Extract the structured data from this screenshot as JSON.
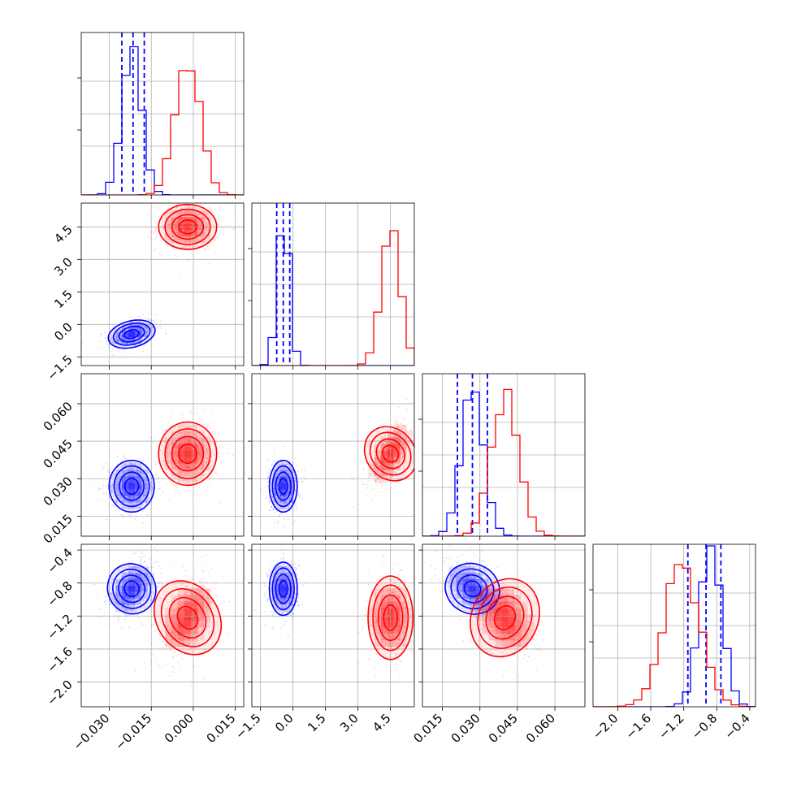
{
  "chart_data": {
    "type": "corner",
    "colors": {
      "series_a": "#0000ff",
      "series_b": "#ff0000"
    },
    "grid": true,
    "params": [
      {
        "range": [
          -0.04,
          0.018
        ],
        "ticks": [
          "−0.030",
          "−0.015",
          "0.000",
          "0.015"
        ],
        "tick_values": [
          -0.03,
          -0.015,
          0.0,
          0.015
        ]
      },
      {
        "range": [
          -1.9,
          5.6
        ],
        "ticks": [
          "−1.5",
          "0.0",
          "1.5",
          "3.0",
          "4.5"
        ],
        "tick_values": [
          -1.5,
          0.0,
          1.5,
          3.0,
          4.5
        ]
      },
      {
        "range": [
          0.007,
          0.072
        ],
        "ticks": [
          "0.015",
          "0.030",
          "0.045",
          "0.060"
        ],
        "tick_values": [
          0.015,
          0.03,
          0.045,
          0.06
        ]
      },
      {
        "range": [
          -2.3,
          -0.33
        ],
        "ticks": [
          "−2.0",
          "−1.6",
          "−1.2",
          "−0.8",
          "−0.4"
        ],
        "tick_values": [
          -2.0,
          -1.6,
          -1.2,
          -0.8,
          -0.4
        ]
      }
    ],
    "series": [
      {
        "color": "#0000ff",
        "means": [
          -0.022,
          -0.45,
          0.027,
          -0.87
        ],
        "sigmas": [
          0.0035,
          0.28,
          0.0045,
          0.14
        ],
        "corr": {
          "1-0": 0.4,
          "2-0": 0.0,
          "2-1": 0.0,
          "3-0": 0.4,
          "3-1": 0.0,
          "3-2": -0.45
        },
        "quantile_lines": [
          [
            -0.0255,
            -0.0215,
            -0.0175
          ],
          [
            -0.75,
            -0.45,
            -0.15
          ],
          [
            0.021,
            0.027,
            0.033
          ],
          [
            -1.15,
            -0.93,
            -0.75
          ]
        ],
        "marginal_peaks": [
          1.0,
          1.0,
          1.0,
          1.0
        ]
      },
      {
        "color": "#ff0000",
        "means": [
          -0.002,
          4.5,
          0.04,
          -1.22
        ],
        "sigmas": [
          0.0045,
          0.45,
          0.0055,
          0.22
        ],
        "corr": {
          "1-0": 0.0,
          "2-0": 0.0,
          "2-1": 0.55,
          "3-0": 0.45,
          "3-1": 0.0,
          "3-2": -0.35
        },
        "quantile_lines": null,
        "marginal_peaks": [
          0.92,
          0.9,
          0.95,
          0.95
        ]
      }
    ]
  }
}
